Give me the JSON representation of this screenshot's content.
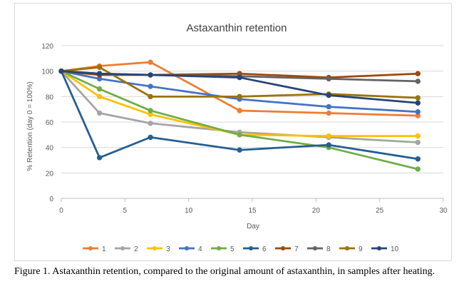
{
  "caption": "Figure 1.  Astaxanthin retention, compared to the original amount of astaxanthin, in samples after heating.",
  "chart_data": {
    "type": "line",
    "title": "Astaxanthin retention",
    "xlabel": "Day",
    "ylabel": "% Retention (day 0 = 100%)",
    "xlim": [
      0,
      30
    ],
    "ylim": [
      0,
      120
    ],
    "xticks": [
      0,
      5,
      10,
      15,
      20,
      25,
      30
    ],
    "yticks": [
      0,
      20,
      40,
      60,
      80,
      100,
      120
    ],
    "grid": "horizontal",
    "legend_position": "bottom",
    "series": [
      {
        "name": "1",
        "color": "#ED7D31",
        "points": [
          [
            0,
            100
          ],
          [
            3,
            104
          ],
          [
            7,
            107
          ],
          [
            14,
            69
          ],
          [
            21,
            67
          ],
          [
            28,
            65
          ]
        ]
      },
      {
        "name": "2",
        "color": "#A5A5A5",
        "points": [
          [
            0,
            100
          ],
          [
            3,
            67
          ],
          [
            7,
            59
          ],
          [
            14,
            52
          ],
          [
            21,
            48
          ],
          [
            28,
            44
          ]
        ]
      },
      {
        "name": "3",
        "color": "#FFC000",
        "points": [
          [
            0,
            100
          ],
          [
            3,
            80
          ],
          [
            7,
            66
          ],
          [
            14,
            50
          ],
          [
            21,
            49
          ],
          [
            28,
            49
          ]
        ]
      },
      {
        "name": "4",
        "color": "#4472C4",
        "points": [
          [
            0,
            100
          ],
          [
            3,
            94
          ],
          [
            7,
            88
          ],
          [
            14,
            78
          ],
          [
            21,
            72
          ],
          [
            28,
            68
          ]
        ]
      },
      {
        "name": "5",
        "color": "#70AD47",
        "points": [
          [
            0,
            100
          ],
          [
            3,
            86
          ],
          [
            7,
            69
          ],
          [
            14,
            50
          ],
          [
            21,
            40
          ],
          [
            28,
            23
          ]
        ]
      },
      {
        "name": "6",
        "color": "#255E91",
        "points": [
          [
            0,
            100
          ],
          [
            3,
            32
          ],
          [
            7,
            48
          ],
          [
            14,
            38
          ],
          [
            21,
            42
          ],
          [
            28,
            31
          ]
        ]
      },
      {
        "name": "7",
        "color": "#9E480E",
        "points": [
          [
            0,
            100
          ],
          [
            3,
            97
          ],
          [
            7,
            97
          ],
          [
            14,
            98
          ],
          [
            21,
            95
          ],
          [
            28,
            98
          ]
        ]
      },
      {
        "name": "8",
        "color": "#636363",
        "points": [
          [
            0,
            100
          ],
          [
            3,
            98
          ],
          [
            7,
            97
          ],
          [
            14,
            96
          ],
          [
            21,
            94
          ],
          [
            28,
            92
          ]
        ]
      },
      {
        "name": "9",
        "color": "#997300",
        "points": [
          [
            0,
            100
          ],
          [
            3,
            103
          ],
          [
            7,
            80
          ],
          [
            14,
            80
          ],
          [
            21,
            82
          ],
          [
            28,
            79
          ]
        ]
      },
      {
        "name": "10",
        "color": "#264478",
        "points": [
          [
            0,
            100
          ],
          [
            3,
            98
          ],
          [
            7,
            97
          ],
          [
            14,
            95
          ],
          [
            21,
            81
          ],
          [
            28,
            75
          ]
        ]
      }
    ]
  }
}
